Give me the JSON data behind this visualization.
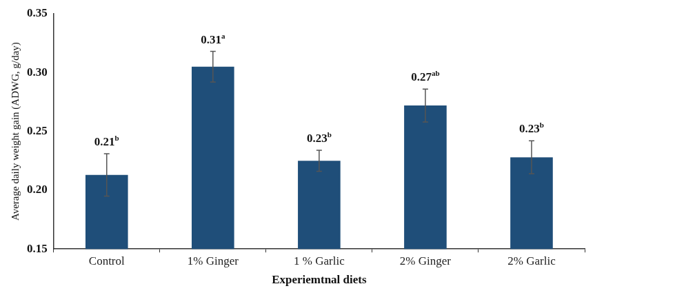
{
  "chart_data": {
    "type": "bar",
    "xlabel": "Experiemtnal diets",
    "ylabel": "Average daily weight gain (ADWG, g/day)",
    "categories": [
      "Control",
      "1% Ginger",
      "1 % Garlic",
      "2% Ginger",
      "2% Garlic"
    ],
    "values": [
      0.213,
      0.305,
      0.225,
      0.272,
      0.228
    ],
    "errors": [
      0.018,
      0.013,
      0.009,
      0.014,
      0.014
    ],
    "value_labels": [
      "0.21$^{b}$",
      "0.31$^{a}$",
      "0.23$^{b}$",
      "0.27$^{ab}$",
      "0.23$^{b}$"
    ],
    "color": "#1f4e79",
    "ylim": [
      0.15,
      0.35
    ],
    "yticks": [
      0.15,
      {
        "value": 0.2,
        "label": "0.20"
      },
      0.25,
      {
        "value": 0.3,
        "label": "0.30"
      },
      0.35
    ],
    "grid": false,
    "legend": false
  }
}
